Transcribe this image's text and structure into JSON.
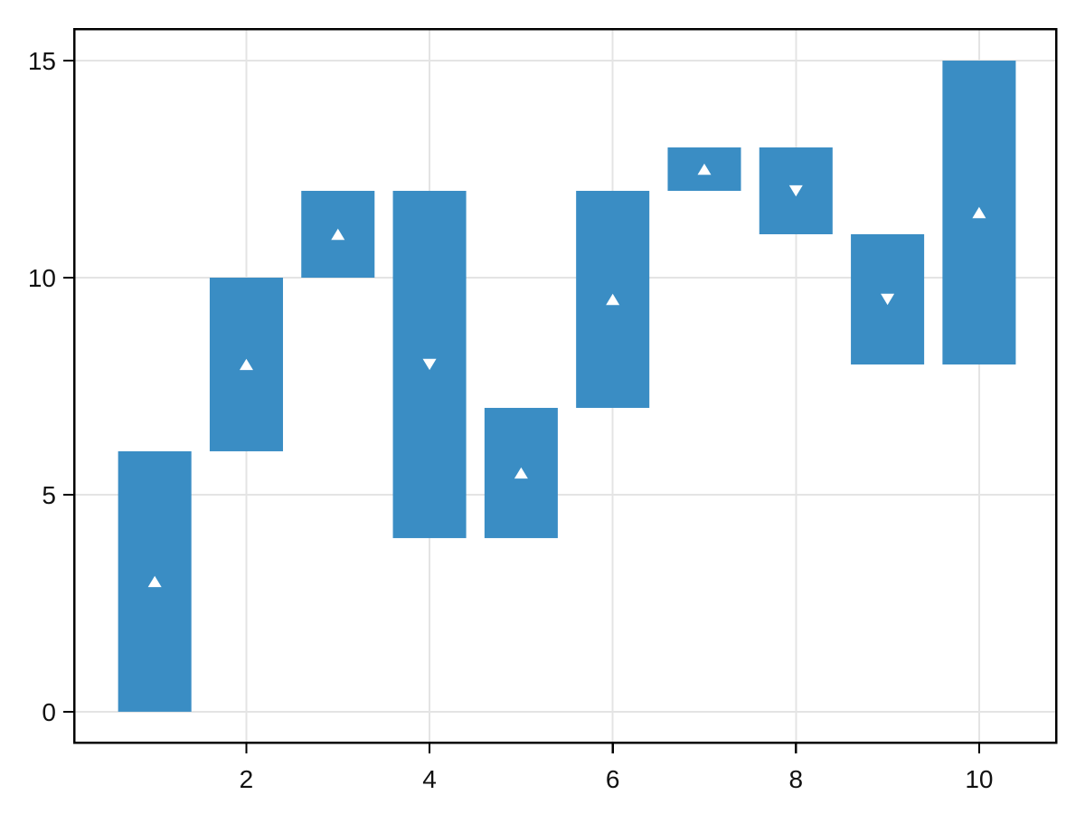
{
  "chart_data": {
    "type": "bar",
    "variant": "floating_range_bars_with_midpoint_markers",
    "title": "",
    "xlabel": "",
    "ylabel": "",
    "legend_visible": false,
    "grid": true,
    "bar_width": 0.8,
    "x": [
      1,
      2,
      3,
      4,
      5,
      6,
      7,
      8,
      9,
      10
    ],
    "bars": [
      {
        "x": 1,
        "low": 0,
        "high": 6,
        "marker_value": 3,
        "marker_shape": "triangle-up"
      },
      {
        "x": 2,
        "low": 6,
        "high": 10,
        "marker_value": 8,
        "marker_shape": "triangle-up"
      },
      {
        "x": 3,
        "low": 10,
        "high": 12,
        "marker_value": 11,
        "marker_shape": "triangle-up"
      },
      {
        "x": 4,
        "low": 4,
        "high": 12,
        "marker_value": 8,
        "marker_shape": "triangle-down"
      },
      {
        "x": 5,
        "low": 4,
        "high": 7,
        "marker_value": 5.5,
        "marker_shape": "triangle-up"
      },
      {
        "x": 6,
        "low": 7,
        "high": 12,
        "marker_value": 9.5,
        "marker_shape": "triangle-up"
      },
      {
        "x": 7,
        "low": 12,
        "high": 13,
        "marker_value": 12.5,
        "marker_shape": "triangle-up"
      },
      {
        "x": 8,
        "low": 11,
        "high": 13,
        "marker_value": 12,
        "marker_shape": "triangle-down"
      },
      {
        "x": 9,
        "low": 8,
        "high": 11,
        "marker_value": 9.5,
        "marker_shape": "triangle-down"
      },
      {
        "x": 10,
        "low": 8,
        "high": 15,
        "marker_value": 11.5,
        "marker_shape": "triangle-up"
      }
    ],
    "xticks": [
      2,
      4,
      6,
      8,
      10
    ],
    "xtick_labels": [
      "2",
      "4",
      "6",
      "8",
      "10"
    ],
    "yticks": [
      0,
      5,
      10,
      15
    ],
    "ytick_labels": [
      "0",
      "5",
      "10",
      "15"
    ],
    "xlim": [
      0.12,
      10.84
    ],
    "ylim": [
      -0.71,
      15.73
    ],
    "colors": {
      "bar": "#3a8dc4",
      "marker": "#ffffff",
      "grid": "#e4e4e4",
      "axis": "#000000",
      "tick_text": "#111111",
      "background": "#ffffff"
    }
  }
}
